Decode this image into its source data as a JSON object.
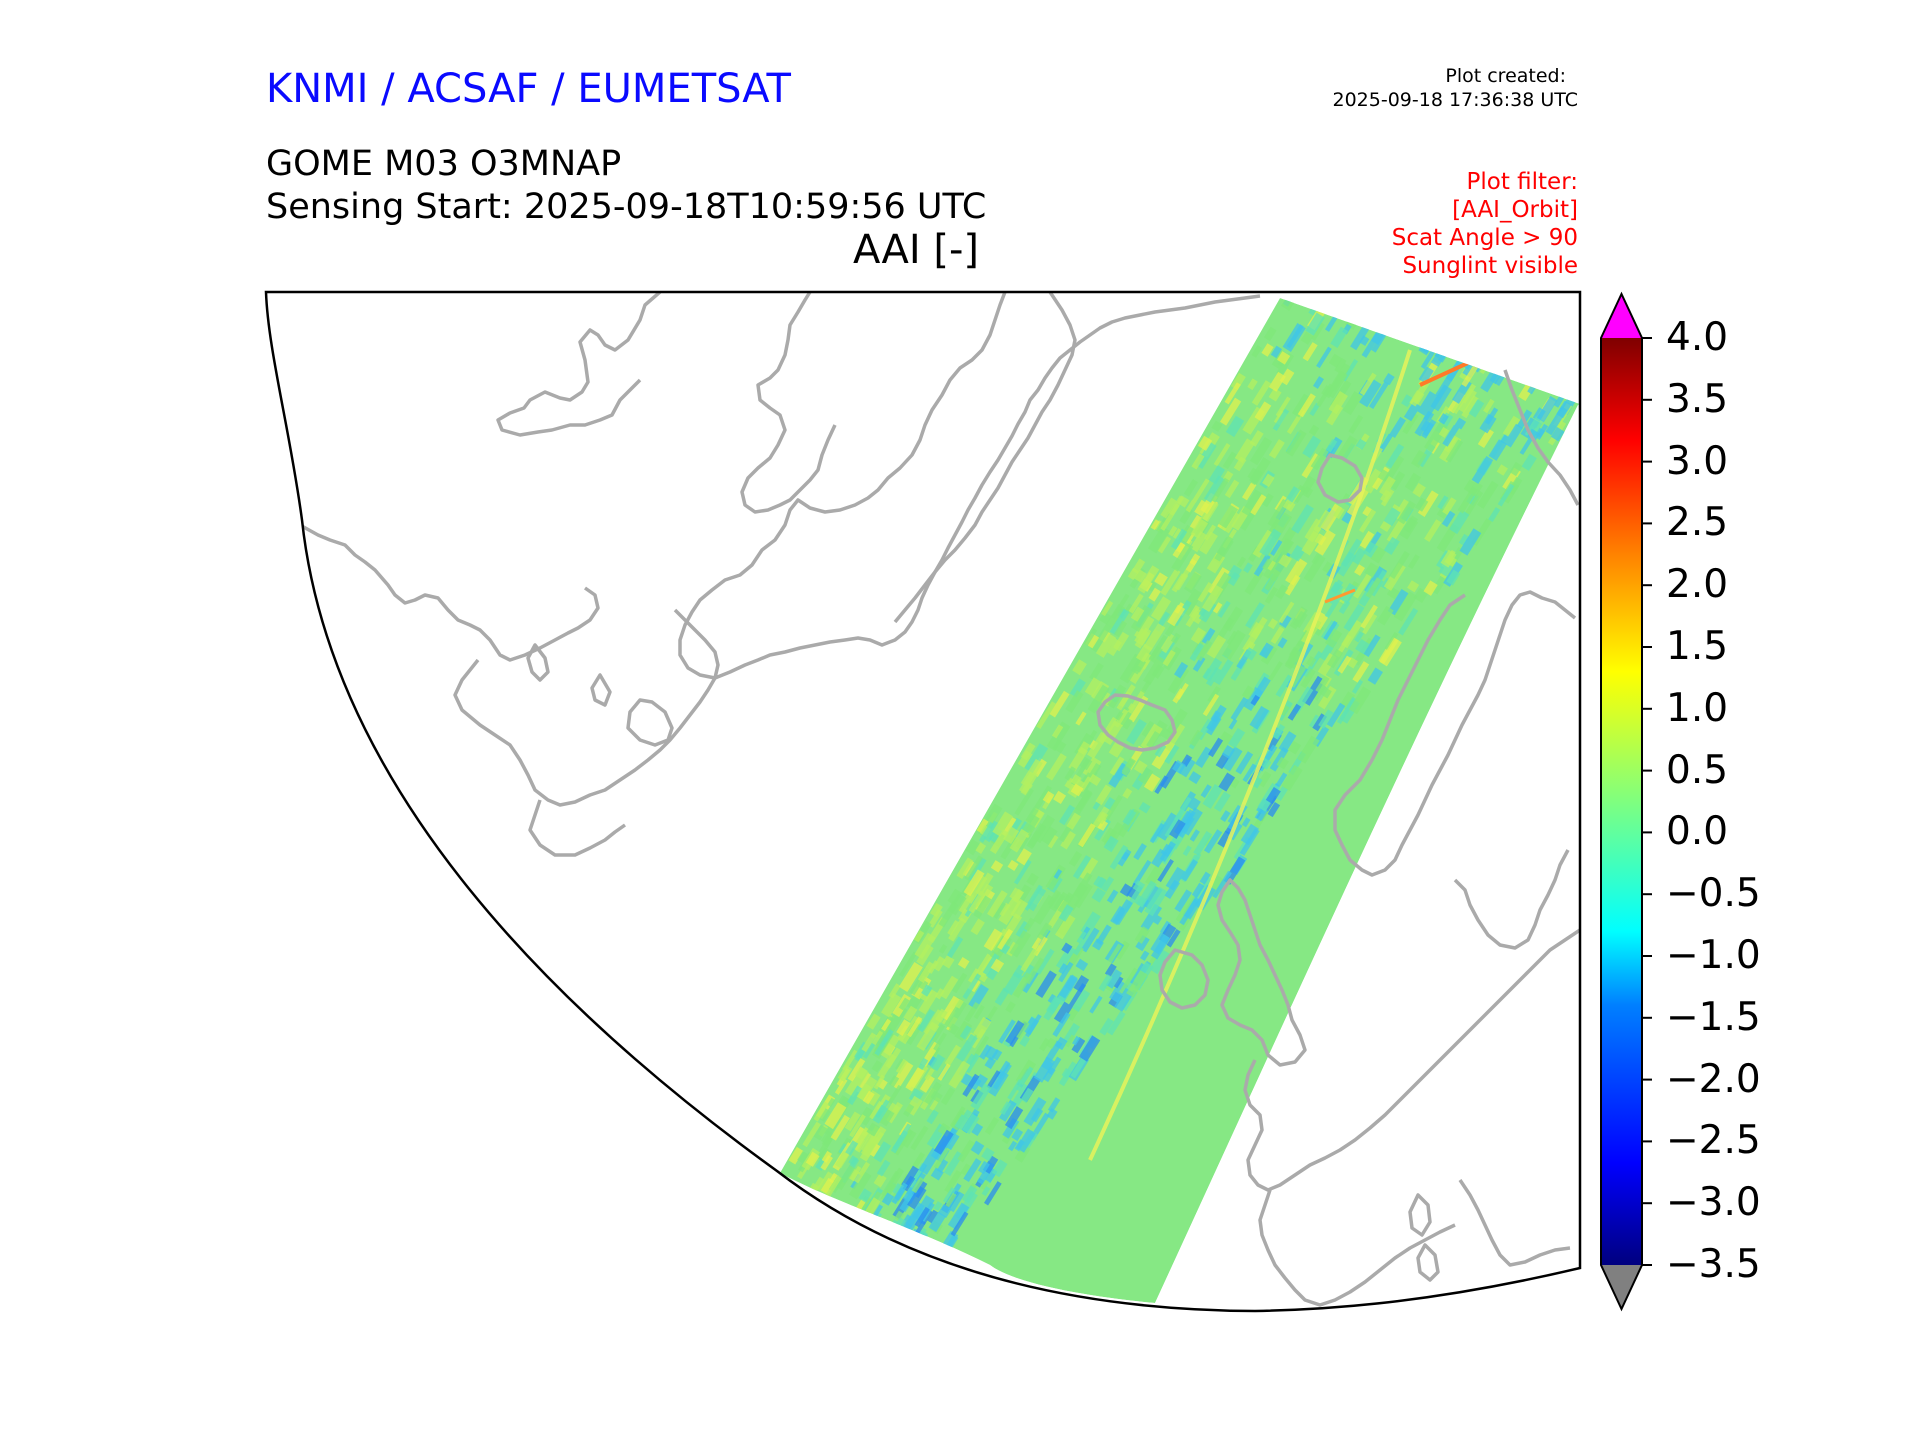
{
  "header": {
    "agency": "KNMI / ACSAF / EUMETSAT",
    "created_label": "Plot created:",
    "created_time": "2025-09-18 17:36:38 UTC",
    "product": "GOME M03 O3MNAP",
    "sensing_start": "Sensing Start: 2025-09-18T10:59:56 UTC",
    "plot_title": "AAI [-]"
  },
  "filters": [
    "Plot filter:",
    "[AAI_Orbit]",
    "Scat Angle > 90",
    "Sunglint visible"
  ],
  "colorbar": {
    "ticks": [
      "4.0",
      "3.5",
      "3.0",
      "2.5",
      "2.0",
      "1.5",
      "1.0",
      "0.5",
      "0.0",
      "−0.5",
      "−1.0",
      "−1.5",
      "−2.0",
      "−2.5",
      "−3.0",
      "−3.5"
    ],
    "min": -3.5,
    "max": 4.0,
    "over_color": "#ff00ff",
    "under_color": "#808080",
    "colormap": [
      "#00007f",
      "#0000ff",
      "#007fff",
      "#00ffff",
      "#7fff7f",
      "#ffff00",
      "#ff7f00",
      "#ff0000",
      "#7f0000"
    ]
  },
  "map": {
    "coastline_color": "#aaaaaa",
    "swath_colors": [
      "#7fe87a",
      "#b3f060",
      "#5ee3b4",
      "#3fc5e8",
      "#e0f24e",
      "#2a8cf0"
    ]
  }
}
